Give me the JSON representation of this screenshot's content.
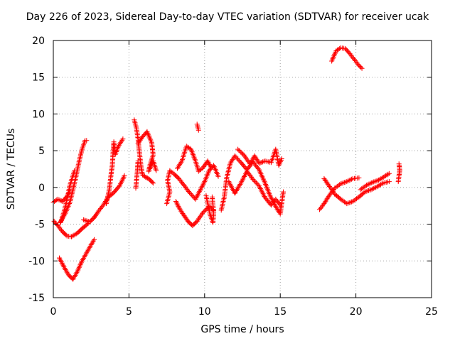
{
  "chart_data": {
    "type": "scatter",
    "title": "Day 226 of 2023, Sidereal Day-to-day VTEC variation (SDTVAR) for receiver ucak",
    "xlabel": "GPS time / hours",
    "ylabel": "SDTVAR / TECUs",
    "xlim": [
      0,
      25
    ],
    "ylim": [
      -15,
      20
    ],
    "xticks": [
      0,
      5,
      10,
      15,
      20,
      25
    ],
    "yticks": [
      -15,
      -10,
      -5,
      0,
      5,
      10,
      15,
      20
    ],
    "xtick_labels": [
      "0",
      "5",
      "10",
      "15",
      "20",
      "25"
    ],
    "ytick_labels": [
      "-15",
      "-10",
      "-5",
      "0",
      "5",
      "10",
      "15",
      "20"
    ],
    "grid": true,
    "marker": "+",
    "color": "#ff0000",
    "series": [
      {
        "name": "ucak",
        "tracks": [
          [
            [
              0.0,
              -2.0
            ],
            [
              0.3,
              -1.6
            ],
            [
              0.6,
              -1.9
            ],
            [
              0.9,
              -1.2
            ],
            [
              1.1,
              -0.5
            ]
          ],
          [
            [
              0.05,
              -4.6
            ],
            [
              0.3,
              -5.2
            ],
            [
              0.6,
              -6.0
            ],
            [
              0.9,
              -6.6
            ],
            [
              1.2,
              -6.7
            ],
            [
              1.6,
              -6.2
            ],
            [
              1.9,
              -5.6
            ],
            [
              2.3,
              -4.9
            ]
          ],
          [
            [
              0.45,
              -4.8
            ],
            [
              0.8,
              -3.5
            ],
            [
              1.1,
              -2.0
            ],
            [
              1.3,
              -0.3
            ],
            [
              1.5,
              1.5
            ],
            [
              1.7,
              3.5
            ],
            [
              1.9,
              5.2
            ],
            [
              2.1,
              6.4
            ],
            [
              2.2,
              6.4
            ]
          ],
          [
            [
              0.4,
              -9.6
            ],
            [
              0.7,
              -10.8
            ],
            [
              1.0,
              -11.9
            ],
            [
              1.3,
              -12.5
            ],
            [
              1.6,
              -11.4
            ],
            [
              1.9,
              -10.0
            ],
            [
              2.2,
              -8.9
            ],
            [
              2.5,
              -7.8
            ],
            [
              2.7,
              -7.1
            ]
          ],
          [
            [
              0.5,
              -4.7
            ],
            [
              0.75,
              -3.0
            ],
            [
              0.95,
              -1.2
            ],
            [
              1.1,
              0.3
            ],
            [
              1.25,
              1.3
            ],
            [
              1.4,
              2.3
            ]
          ],
          [
            [
              2.0,
              -4.4
            ],
            [
              2.4,
              -4.7
            ],
            [
              2.7,
              -4.1
            ],
            [
              3.0,
              -3.2
            ],
            [
              3.3,
              -2.4
            ],
            [
              3.6,
              -1.4
            ],
            [
              4.0,
              -0.7
            ],
            [
              4.4,
              0.3
            ],
            [
              4.7,
              1.6
            ]
          ],
          [
            [
              3.5,
              -2.2
            ],
            [
              3.7,
              -0.3
            ],
            [
              3.8,
              1.5
            ],
            [
              3.9,
              3.0
            ],
            [
              3.95,
              4.8
            ],
            [
              4.0,
              6.2
            ],
            [
              4.1,
              4.5
            ],
            [
              4.3,
              5.6
            ],
            [
              4.6,
              6.6
            ]
          ],
          [
            [
              5.35,
              9.2
            ],
            [
              5.5,
              8.0
            ],
            [
              5.6,
              6.6
            ],
            [
              5.7,
              4.6
            ],
            [
              5.8,
              2.8
            ],
            [
              5.9,
              1.7
            ],
            [
              6.1,
              1.4
            ],
            [
              6.3,
              1.2
            ],
            [
              6.6,
              0.6
            ]
          ],
          [
            [
              5.6,
              6.0
            ],
            [
              5.9,
              6.9
            ],
            [
              6.2,
              7.6
            ],
            [
              6.5,
              6.1
            ],
            [
              6.6,
              4.4
            ],
            [
              6.4,
              3.1
            ],
            [
              6.3,
              2.2
            ],
            [
              6.6,
              3.6
            ],
            [
              6.8,
              2.3
            ]
          ],
          [
            [
              5.45,
              -0.1
            ],
            [
              5.55,
              2.1
            ],
            [
              5.6,
              3.6
            ]
          ],
          [
            [
              7.5,
              -2.2
            ],
            [
              7.7,
              -0.6
            ],
            [
              7.55,
              0.9
            ],
            [
              7.7,
              2.3
            ],
            [
              8.0,
              1.8
            ],
            [
              8.3,
              1.2
            ],
            [
              8.6,
              0.4
            ],
            [
              9.0,
              -0.7
            ],
            [
              9.4,
              -1.6
            ],
            [
              9.7,
              -0.4
            ],
            [
              10.0,
              0.8
            ],
            [
              10.3,
              2.3
            ],
            [
              10.6,
              3.0
            ],
            [
              10.9,
              1.5
            ]
          ],
          [
            [
              8.1,
              -1.9
            ],
            [
              8.35,
              -2.9
            ],
            [
              8.6,
              -3.7
            ],
            [
              8.9,
              -4.6
            ],
            [
              9.2,
              -5.2
            ],
            [
              9.5,
              -4.6
            ],
            [
              9.9,
              -3.4
            ],
            [
              10.3,
              -2.6
            ],
            [
              10.6,
              -3.1
            ]
          ],
          [
            [
              8.2,
              2.6
            ],
            [
              8.5,
              3.6
            ],
            [
              8.8,
              5.6
            ],
            [
              9.1,
              5.2
            ],
            [
              9.4,
              3.6
            ],
            [
              9.6,
              2.2
            ],
            [
              9.9,
              2.7
            ],
            [
              10.2,
              3.6
            ],
            [
              10.4,
              2.8
            ]
          ],
          [
            [
              9.5,
              8.6
            ],
            [
              9.6,
              7.8
            ]
          ],
          [
            [
              10.1,
              -1.1
            ],
            [
              10.35,
              -3.6
            ],
            [
              10.55,
              -4.8
            ],
            [
              10.6,
              -3.4
            ],
            [
              10.5,
              -1.3
            ]
          ],
          [
            [
              11.1,
              -3.1
            ],
            [
              11.3,
              -1.3
            ],
            [
              11.45,
              1.2
            ],
            [
              11.7,
              3.3
            ],
            [
              12.0,
              4.3
            ],
            [
              12.4,
              3.4
            ],
            [
              12.8,
              2.4
            ],
            [
              13.2,
              3.5
            ],
            [
              13.6,
              2.4
            ],
            [
              14.0,
              0.6
            ],
            [
              14.3,
              -1.0
            ],
            [
              14.7,
              -2.6
            ],
            [
              15.0,
              -3.6
            ],
            [
              15.2,
              -0.6
            ]
          ],
          [
            [
              11.6,
              0.8
            ],
            [
              12.0,
              -0.8
            ],
            [
              12.4,
              0.6
            ],
            [
              12.8,
              2.2
            ],
            [
              13.2,
              1.1
            ],
            [
              13.6,
              0.2
            ],
            [
              14.0,
              -1.4
            ],
            [
              14.4,
              -2.4
            ],
            [
              14.7,
              -1.6
            ],
            [
              15.0,
              -2.4
            ]
          ],
          [
            [
              12.2,
              5.2
            ],
            [
              12.6,
              4.4
            ],
            [
              13.0,
              3.2
            ],
            [
              13.3,
              4.3
            ],
            [
              13.6,
              3.3
            ],
            [
              14.0,
              3.6
            ],
            [
              14.4,
              3.4
            ],
            [
              14.7,
              5.2
            ],
            [
              14.9,
              3.0
            ],
            [
              15.1,
              3.9
            ]
          ],
          [
            [
              17.6,
              -3.0
            ],
            [
              17.9,
              -2.2
            ],
            [
              18.2,
              -1.2
            ],
            [
              18.6,
              -0.1
            ],
            [
              19.0,
              0.5
            ],
            [
              19.4,
              0.8
            ],
            [
              19.8,
              1.2
            ],
            [
              20.2,
              1.3
            ]
          ],
          [
            [
              17.9,
              1.2
            ],
            [
              18.2,
              0.3
            ],
            [
              18.6,
              -0.9
            ],
            [
              19.0,
              -1.6
            ],
            [
              19.4,
              -2.2
            ],
            [
              19.8,
              -1.9
            ],
            [
              20.2,
              -1.3
            ],
            [
              20.6,
              -0.6
            ],
            [
              21.0,
              -0.3
            ],
            [
              21.4,
              0.1
            ],
            [
              21.8,
              0.6
            ],
            [
              22.2,
              0.8
            ]
          ],
          [
            [
              20.3,
              -0.3
            ],
            [
              20.7,
              0.3
            ],
            [
              21.1,
              0.7
            ],
            [
              21.5,
              1.0
            ],
            [
              21.9,
              1.5
            ],
            [
              22.2,
              1.9
            ]
          ],
          [
            [
              18.4,
              17.2
            ],
            [
              18.7,
              18.6
            ],
            [
              19.0,
              19.0
            ],
            [
              19.3,
              18.9
            ],
            [
              19.6,
              18.2
            ],
            [
              19.9,
              17.4
            ],
            [
              20.2,
              16.6
            ],
            [
              20.4,
              16.2
            ]
          ],
          [
            [
              22.8,
              0.8
            ],
            [
              22.85,
              1.6
            ],
            [
              22.9,
              2.3
            ],
            [
              22.85,
              3.2
            ]
          ]
        ]
      }
    ]
  }
}
